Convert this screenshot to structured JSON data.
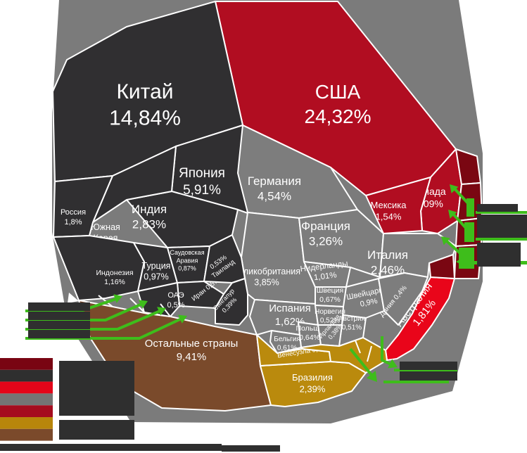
{
  "chart_data": {
    "type": "voronoi-treemap",
    "title": "",
    "unit": "%",
    "language": "ru",
    "legend_position": "bottom-left",
    "colors": {
      "background_silhouette": "#7B7B7B",
      "cell_border": "#FFFFFF",
      "asia": "#302F31",
      "north_america": "#B10D21",
      "north_america_dark": "#7A0712",
      "europe": "#7D7D7D",
      "oceania": "#E9051A",
      "south_america": "#BA8A0D",
      "rest": "#7A4A2B",
      "arrow_green": "#3EBD1B",
      "redacted_box": "#2F2F2F",
      "label_text": "#FFFFFF"
    },
    "legend_colors": [
      "#790512",
      "#2F2F2F",
      "#E30519",
      "#747474",
      "#A50C1E",
      "#B8860B",
      "#7B4A2B"
    ],
    "cells": [
      {
        "id": "usa",
        "name": "США",
        "value": 24.32,
        "label_lines": [
          "США",
          "24,32%"
        ],
        "group": "north_america"
      },
      {
        "id": "china",
        "name": "Китай",
        "value": 14.84,
        "label_lines": [
          "Китай",
          "14,84%"
        ],
        "group": "asia"
      },
      {
        "id": "rest",
        "name": "Остальные страны",
        "value": 9.41,
        "label_lines": [
          "Остальные страны",
          "9,41%"
        ],
        "group": "rest"
      },
      {
        "id": "japan",
        "name": "Япония",
        "value": 5.91,
        "label_lines": [
          "Япония",
          "5,91%"
        ],
        "group": "asia"
      },
      {
        "id": "germany",
        "name": "Германия",
        "value": 4.54,
        "label_lines": [
          "Германия",
          "4,54%"
        ],
        "group": "europe"
      },
      {
        "id": "uk",
        "name": "Великобритания",
        "value": 3.85,
        "label_lines": [
          "Великобритания",
          "3,85%"
        ],
        "group": "europe"
      },
      {
        "id": "france",
        "name": "Франция",
        "value": 3.26,
        "label_lines": [
          "Франция",
          "3,26%"
        ],
        "group": "europe"
      },
      {
        "id": "india",
        "name": "Индия",
        "value": 2.83,
        "label_lines": [
          "Индия",
          "2,83%"
        ],
        "group": "asia"
      },
      {
        "id": "italy",
        "name": "Италия",
        "value": 2.46,
        "label_lines": [
          "Италия",
          "2,46%"
        ],
        "group": "europe"
      },
      {
        "id": "brazil",
        "name": "Бразилия",
        "value": 2.39,
        "label_lines": [
          "Бразилия",
          "2,39%"
        ],
        "group": "south_america"
      },
      {
        "id": "canada",
        "name": "Канада",
        "value": 2.09,
        "label_lines": [
          "Канада",
          "2,09%"
        ],
        "group": "north_america"
      },
      {
        "id": "skorea",
        "name": "Южная Корея",
        "value": 1.86,
        "label_lines": [
          "Южная",
          "Корея",
          "1,86%"
        ],
        "group": "asia"
      },
      {
        "id": "australia",
        "name": "Австралия",
        "value": 1.81,
        "label_lines": [
          "Австралия",
          "1,81%"
        ],
        "group": "oceania"
      },
      {
        "id": "russia",
        "name": "Россия",
        "value": 1.8,
        "label_lines": [
          "Россия",
          "1,8%"
        ],
        "group": "asia"
      },
      {
        "id": "spain",
        "name": "Испания",
        "value": 1.62,
        "label_lines": [
          "Испания",
          "1,62%"
        ],
        "group": "europe"
      },
      {
        "id": "mexico",
        "name": "Мексика",
        "value": 1.54,
        "label_lines": [
          "Мексика",
          "1,54%"
        ],
        "group": "north_america"
      },
      {
        "id": "indonesia",
        "name": "Индонезия",
        "value": 1.16,
        "label_lines": [
          "Индонезия",
          "1,16%"
        ],
        "group": "asia"
      },
      {
        "id": "netherlands",
        "name": "Нидерланды",
        "value": 1.01,
        "label_lines": [
          "Нидерланды",
          "1,01%"
        ],
        "group": "europe"
      },
      {
        "id": "turkey",
        "name": "Турция",
        "value": 0.97,
        "label_lines": [
          "Турция",
          "0,97%"
        ],
        "group": "asia"
      },
      {
        "id": "switzerland",
        "name": "Швейцария",
        "value": 0.9,
        "label_lines": [
          "Швейцария",
          "0,9%"
        ],
        "group": "europe"
      },
      {
        "id": "saudi",
        "name": "Саудовская Аравия",
        "value": 0.87,
        "label_lines": [
          "Саудовская",
          "Аравия",
          "0,87%"
        ],
        "group": "asia"
      },
      {
        "id": "sweden",
        "name": "Швеция",
        "value": 0.67,
        "label_lines": [
          "Швеция",
          "0,67%"
        ],
        "group": "europe"
      },
      {
        "id": "poland",
        "name": "Польша",
        "value": 0.64,
        "label_lines": [
          "Польша",
          "0,64%"
        ],
        "group": "europe"
      },
      {
        "id": "belgium",
        "name": "Бельгия",
        "value": 0.61,
        "label_lines": [
          "Бельгия",
          "0,61%"
        ],
        "group": "europe"
      },
      {
        "id": "iran",
        "name": "Иран",
        "value": 0.57,
        "label_lines": [
          "Иран 0,57%"
        ],
        "group": "asia"
      },
      {
        "id": "thailand",
        "name": "Таиланд",
        "value": 0.53,
        "label_lines": [
          "0,53%",
          "Таиланд"
        ],
        "group": "asia"
      },
      {
        "id": "norway",
        "name": "Норвегия",
        "value": 0.52,
        "label_lines": [
          "Норвегия",
          "0,52%"
        ],
        "group": "europe"
      },
      {
        "id": "austria",
        "name": "Австрия",
        "value": 0.51,
        "label_lines": [
          "Австрия",
          "0,51%"
        ],
        "group": "europe"
      },
      {
        "id": "uae",
        "name": "ОАЭ",
        "value": 0.5,
        "label_lines": [
          "ОАЭ",
          "0,5%"
        ],
        "group": "asia"
      },
      {
        "id": "venezuela",
        "name": "Венесуэла",
        "value": 0.5,
        "label_lines": [
          "Венесуэла 0,5%"
        ],
        "group": "south_america"
      },
      {
        "id": "denmark",
        "name": "Дания",
        "value": 0.4,
        "label_lines": [
          "Дания 0,4%"
        ],
        "group": "europe"
      },
      {
        "id": "singapore",
        "name": "Сингапур",
        "value": 0.39,
        "label_lines": [
          "Сингапур",
          "0,39%"
        ],
        "group": "asia"
      },
      {
        "id": "ireland",
        "name": "Ирландия",
        "value": 0.38,
        "label_lines": [
          "Ирландия",
          "0,38%"
        ],
        "group": "europe"
      }
    ],
    "callouts": {
      "left_redacted_boxes": 4,
      "right_redacted_boxes": 3,
      "bottom_right_redacted_boxes": 2,
      "legend_redacted_boxes": 2,
      "bottom_redacted_bars": 2
    }
  }
}
